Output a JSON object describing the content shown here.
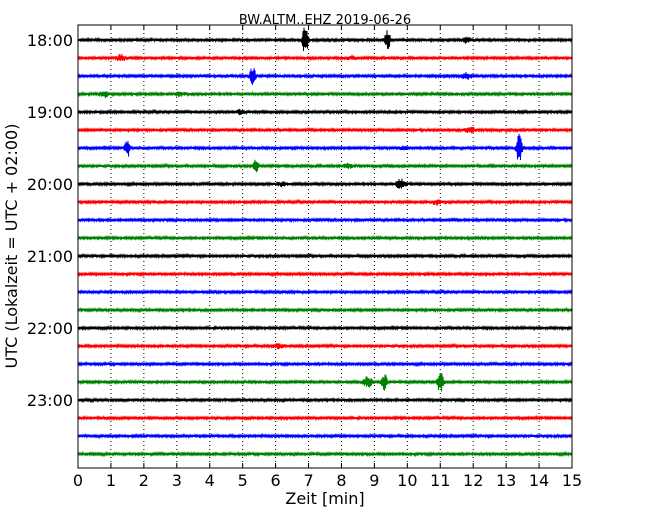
{
  "chart_data": {
    "type": "line",
    "title": "BW.ALTM..EHZ 2019-06-26",
    "xlabel": "Zeit  [min]",
    "ylabel": "UTC (Lokalzeit = UTC + 02:00)",
    "xlim": [
      0,
      15
    ],
    "x_ticks": [
      "0",
      "1",
      "2",
      "3",
      "4",
      "5",
      "6",
      "7",
      "8",
      "9",
      "10",
      "11",
      "12",
      "13",
      "14",
      "15"
    ],
    "y_tick_labels": [
      "18:00",
      "19:00",
      "20:00",
      "21:00",
      "22:00",
      "23:00"
    ],
    "grid": "vertical-dotted",
    "trace_colors": [
      "#000000",
      "#ff0000",
      "#0000ff",
      "#008000"
    ],
    "traces": [
      {
        "start": "18:00",
        "color": "#000000",
        "events": [
          {
            "t": 6.9,
            "amp": 16
          },
          {
            "t": 9.4,
            "amp": 11
          },
          {
            "t": 11.8,
            "amp": 3
          }
        ]
      },
      {
        "start": "18:15",
        "color": "#ff0000",
        "events": [
          {
            "t": 1.3,
            "amp": 3
          },
          {
            "t": 8.3,
            "amp": 2
          }
        ]
      },
      {
        "start": "18:30",
        "color": "#0000ff",
        "events": [
          {
            "t": 5.3,
            "amp": 11
          },
          {
            "t": 11.8,
            "amp": 3
          }
        ]
      },
      {
        "start": "18:45",
        "color": "#008000",
        "events": [
          {
            "t": 0.8,
            "amp": 3
          },
          {
            "t": 3.1,
            "amp": 2
          }
        ]
      },
      {
        "start": "19:00",
        "color": "#000000",
        "events": [
          {
            "t": 4.9,
            "amp": 2
          }
        ]
      },
      {
        "start": "19:15",
        "color": "#ff0000",
        "events": [
          {
            "t": 11.9,
            "amp": 3
          }
        ]
      },
      {
        "start": "19:30",
        "color": "#0000ff",
        "events": [
          {
            "t": 1.5,
            "amp": 9
          },
          {
            "t": 13.4,
            "amp": 17
          },
          {
            "t": 9.9,
            "amp": 2
          }
        ]
      },
      {
        "start": "19:45",
        "color": "#008000",
        "events": [
          {
            "t": 5.4,
            "amp": 7
          },
          {
            "t": 8.2,
            "amp": 2
          }
        ]
      },
      {
        "start": "20:00",
        "color": "#000000",
        "events": [
          {
            "t": 9.8,
            "amp": 5
          },
          {
            "t": 6.2,
            "amp": 2
          }
        ]
      },
      {
        "start": "20:15",
        "color": "#ff0000",
        "events": [
          {
            "t": 10.9,
            "amp": 2
          }
        ]
      },
      {
        "start": "20:30",
        "color": "#0000ff",
        "events": []
      },
      {
        "start": "20:45",
        "color": "#008000",
        "events": []
      },
      {
        "start": "21:00",
        "color": "#000000",
        "events": []
      },
      {
        "start": "21:15",
        "color": "#ff0000",
        "events": []
      },
      {
        "start": "21:30",
        "color": "#0000ff",
        "events": []
      },
      {
        "start": "21:45",
        "color": "#008000",
        "events": []
      },
      {
        "start": "22:00",
        "color": "#000000",
        "events": []
      },
      {
        "start": "22:15",
        "color": "#ff0000",
        "events": [
          {
            "t": 6.1,
            "amp": 2
          }
        ]
      },
      {
        "start": "22:30",
        "color": "#0000ff",
        "events": []
      },
      {
        "start": "22:45",
        "color": "#008000",
        "events": [
          {
            "t": 8.8,
            "amp": 5
          },
          {
            "t": 9.3,
            "amp": 9
          },
          {
            "t": 11.0,
            "amp": 12
          }
        ]
      },
      {
        "start": "23:00",
        "color": "#000000",
        "events": []
      },
      {
        "start": "23:15",
        "color": "#ff0000",
        "events": []
      },
      {
        "start": "23:30",
        "color": "#0000ff",
        "events": []
      },
      {
        "start": "23:45",
        "color": "#008000",
        "events": []
      }
    ]
  }
}
